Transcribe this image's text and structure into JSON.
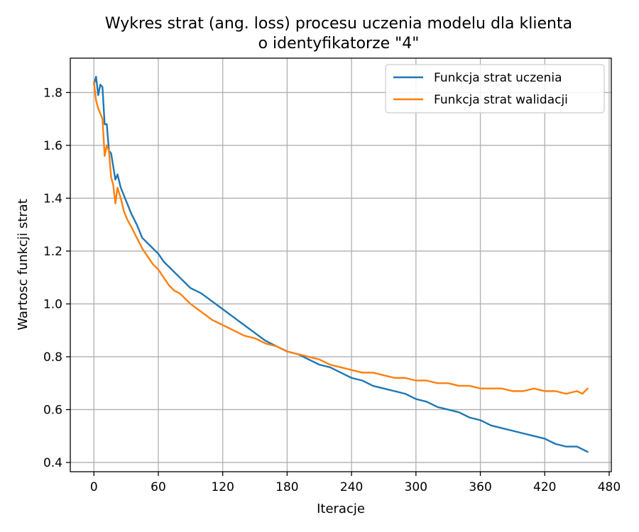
{
  "chart_data": {
    "type": "line",
    "title": [
      "Wykres strat (ang. loss) procesu uczenia modelu dla klienta",
      "o identyfikatorze \"4\""
    ],
    "xlabel": "Iteracje",
    "ylabel": "Wartosc funkcji strat",
    "xlim": [
      -22,
      482
    ],
    "ylim": [
      0.365,
      1.93
    ],
    "xticks": [
      0,
      60,
      120,
      180,
      240,
      300,
      360,
      420,
      480
    ],
    "yticks": [
      0.4,
      0.6,
      0.8,
      1.0,
      1.2,
      1.4,
      1.6,
      1.8
    ],
    "ytick_labels": [
      "0.4",
      "0.6",
      "0.8",
      "1.0",
      "1.2",
      "1.4",
      "1.6",
      "1.8"
    ],
    "grid": true,
    "legend_position": "top-right",
    "series": [
      {
        "name": "Funkcja strat uczenia",
        "color": "#1f77b4",
        "x": [
          0,
          2,
          4,
          6,
          8,
          10,
          12,
          14,
          16,
          18,
          20,
          22,
          25,
          28,
          31,
          35,
          40,
          45,
          50,
          55,
          60,
          65,
          70,
          75,
          80,
          90,
          100,
          110,
          120,
          130,
          140,
          150,
          160,
          170,
          180,
          190,
          200,
          210,
          220,
          230,
          240,
          250,
          260,
          270,
          280,
          290,
          300,
          310,
          320,
          330,
          340,
          350,
          360,
          370,
          380,
          390,
          400,
          410,
          420,
          430,
          440,
          450,
          455,
          460
        ],
        "y": [
          1.83,
          1.86,
          1.79,
          1.83,
          1.82,
          1.68,
          1.68,
          1.58,
          1.57,
          1.52,
          1.47,
          1.49,
          1.44,
          1.41,
          1.38,
          1.34,
          1.3,
          1.25,
          1.23,
          1.21,
          1.19,
          1.16,
          1.14,
          1.12,
          1.1,
          1.06,
          1.04,
          1.01,
          0.98,
          0.95,
          0.92,
          0.89,
          0.86,
          0.84,
          0.82,
          0.81,
          0.79,
          0.77,
          0.76,
          0.74,
          0.72,
          0.71,
          0.69,
          0.68,
          0.67,
          0.66,
          0.64,
          0.63,
          0.61,
          0.6,
          0.59,
          0.57,
          0.56,
          0.54,
          0.53,
          0.52,
          0.51,
          0.5,
          0.49,
          0.47,
          0.46,
          0.46,
          0.45,
          0.44
        ]
      },
      {
        "name": "Funkcja strat walidacji",
        "color": "#ff7f0e",
        "x": [
          0,
          2,
          4,
          6,
          8,
          10,
          12,
          14,
          16,
          18,
          20,
          22,
          25,
          28,
          31,
          35,
          40,
          45,
          50,
          55,
          60,
          65,
          70,
          75,
          80,
          90,
          100,
          110,
          120,
          130,
          140,
          150,
          160,
          170,
          180,
          190,
          200,
          210,
          220,
          230,
          240,
          250,
          260,
          270,
          280,
          290,
          300,
          310,
          320,
          330,
          340,
          350,
          360,
          370,
          380,
          390,
          400,
          410,
          420,
          430,
          440,
          450,
          455,
          460
        ],
        "y": [
          1.84,
          1.77,
          1.74,
          1.72,
          1.7,
          1.56,
          1.6,
          1.58,
          1.48,
          1.45,
          1.38,
          1.44,
          1.4,
          1.35,
          1.32,
          1.29,
          1.25,
          1.21,
          1.18,
          1.15,
          1.13,
          1.1,
          1.07,
          1.05,
          1.04,
          1.0,
          0.97,
          0.94,
          0.92,
          0.9,
          0.88,
          0.87,
          0.85,
          0.84,
          0.82,
          0.81,
          0.8,
          0.79,
          0.77,
          0.76,
          0.75,
          0.74,
          0.74,
          0.73,
          0.72,
          0.72,
          0.71,
          0.71,
          0.7,
          0.7,
          0.69,
          0.69,
          0.68,
          0.68,
          0.68,
          0.67,
          0.67,
          0.68,
          0.67,
          0.67,
          0.66,
          0.67,
          0.66,
          0.68
        ]
      }
    ]
  }
}
